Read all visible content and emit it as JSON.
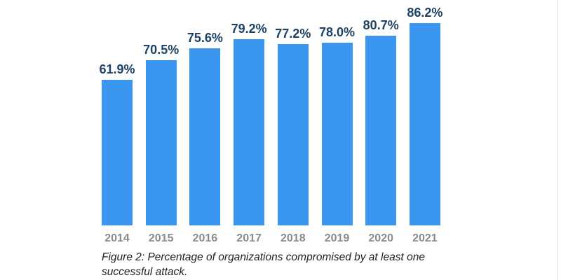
{
  "figure": {
    "caption": {
      "line1": "Figure 2: Percentage of organizations compromised by at least one",
      "line2": "successful attack."
    }
  },
  "chart_data": {
    "type": "bar",
    "categories": [
      "2014",
      "2015",
      "2016",
      "2017",
      "2018",
      "2019",
      "2020",
      "2021"
    ],
    "values": [
      61.9,
      70.5,
      75.6,
      79.2,
      77.2,
      78.0,
      80.7,
      86.2
    ],
    "value_labels": [
      "61.9%",
      "70.5%",
      "75.6%",
      "79.2%",
      "77.2%",
      "78.0%",
      "80.7%",
      "86.2%"
    ],
    "title": "",
    "xlabel": "",
    "ylabel": "",
    "ylim": [
      0,
      100
    ],
    "grid": false,
    "legend": false,
    "axes_visible": false,
    "caption": "Figure 2: Percentage of organizations compromised by at least one successful attack.",
    "colors": {
      "bar": "#3b96f0",
      "value_label": "#1e4266",
      "tick_label": "#8a8a8a",
      "caption_text": "#1f1f1f"
    }
  }
}
